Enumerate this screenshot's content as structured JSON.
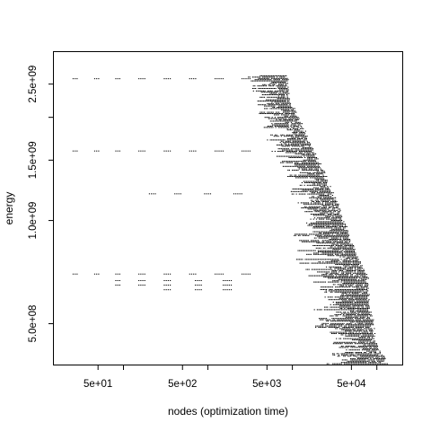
{
  "chart_data": {
    "type": "scatter",
    "title": "",
    "xlabel": "nodes (optimization time)",
    "ylabel": "energy",
    "x_scale": "log",
    "y_scale": "log",
    "xlim": [
      15,
      200000
    ],
    "ylim": [
      380000000,
      3100000000
    ],
    "grid": false,
    "legend": "none",
    "color": "#000000",
    "x_ticks": [
      {
        "value": 50,
        "label": "5e+01"
      },
      {
        "value": 100,
        "label": ""
      },
      {
        "value": 500,
        "label": "5e+02"
      },
      {
        "value": 1000,
        "label": ""
      },
      {
        "value": 5000,
        "label": "5e+03"
      },
      {
        "value": 10000,
        "label": ""
      },
      {
        "value": 50000,
        "label": "5e+04"
      },
      {
        "value": 100000,
        "label": ""
      }
    ],
    "y_ticks": [
      {
        "value": 500000000,
        "label": "5.0e+08"
      },
      {
        "value": 1000000000,
        "label": "1.0e+09"
      },
      {
        "value": 1500000000,
        "label": "1.5e+09"
      },
      {
        "value": 2000000000,
        "label": ""
      },
      {
        "value": 2500000000,
        "label": "2.5e+09"
      }
    ],
    "sparse_rows": [
      {
        "y": 2600000000,
        "x": [
          25,
          45,
          80,
          150,
          300,
          600,
          1200,
          2500
        ]
      },
      {
        "y": 1600000000,
        "x": [
          25,
          45,
          80,
          150,
          300,
          600,
          1200,
          2500
        ]
      },
      {
        "y": 700000000,
        "x": [
          25,
          45,
          80,
          150,
          300,
          600,
          1200,
          2500
        ]
      },
      {
        "y": 1200000000,
        "x": [
          200,
          400,
          900,
          2000
        ]
      },
      {
        "y": 670000000,
        "x": [
          80,
          150,
          300,
          700,
          1500
        ]
      },
      {
        "y": 650000000,
        "x": [
          80,
          150,
          300,
          700,
          1500
        ]
      },
      {
        "y": 630000000,
        "x": [
          300,
          700,
          1500
        ]
      }
    ],
    "front": [
      {
        "y": 380000000,
        "x": 130000
      },
      {
        "y": 450000000,
        "x": 95000
      },
      {
        "y": 520000000,
        "x": 85000
      },
      {
        "y": 600000000,
        "x": 80000
      },
      {
        "y": 700000000,
        "x": 75000
      },
      {
        "y": 850000000,
        "x": 50000
      },
      {
        "y": 1000000000,
        "x": 40000
      },
      {
        "y": 1200000000,
        "x": 30000
      },
      {
        "y": 1500000000,
        "x": 20000
      },
      {
        "y": 1800000000,
        "x": 14000
      },
      {
        "y": 2300000000,
        "x": 9000
      },
      {
        "y": 2650000000,
        "x": 8500
      }
    ]
  }
}
